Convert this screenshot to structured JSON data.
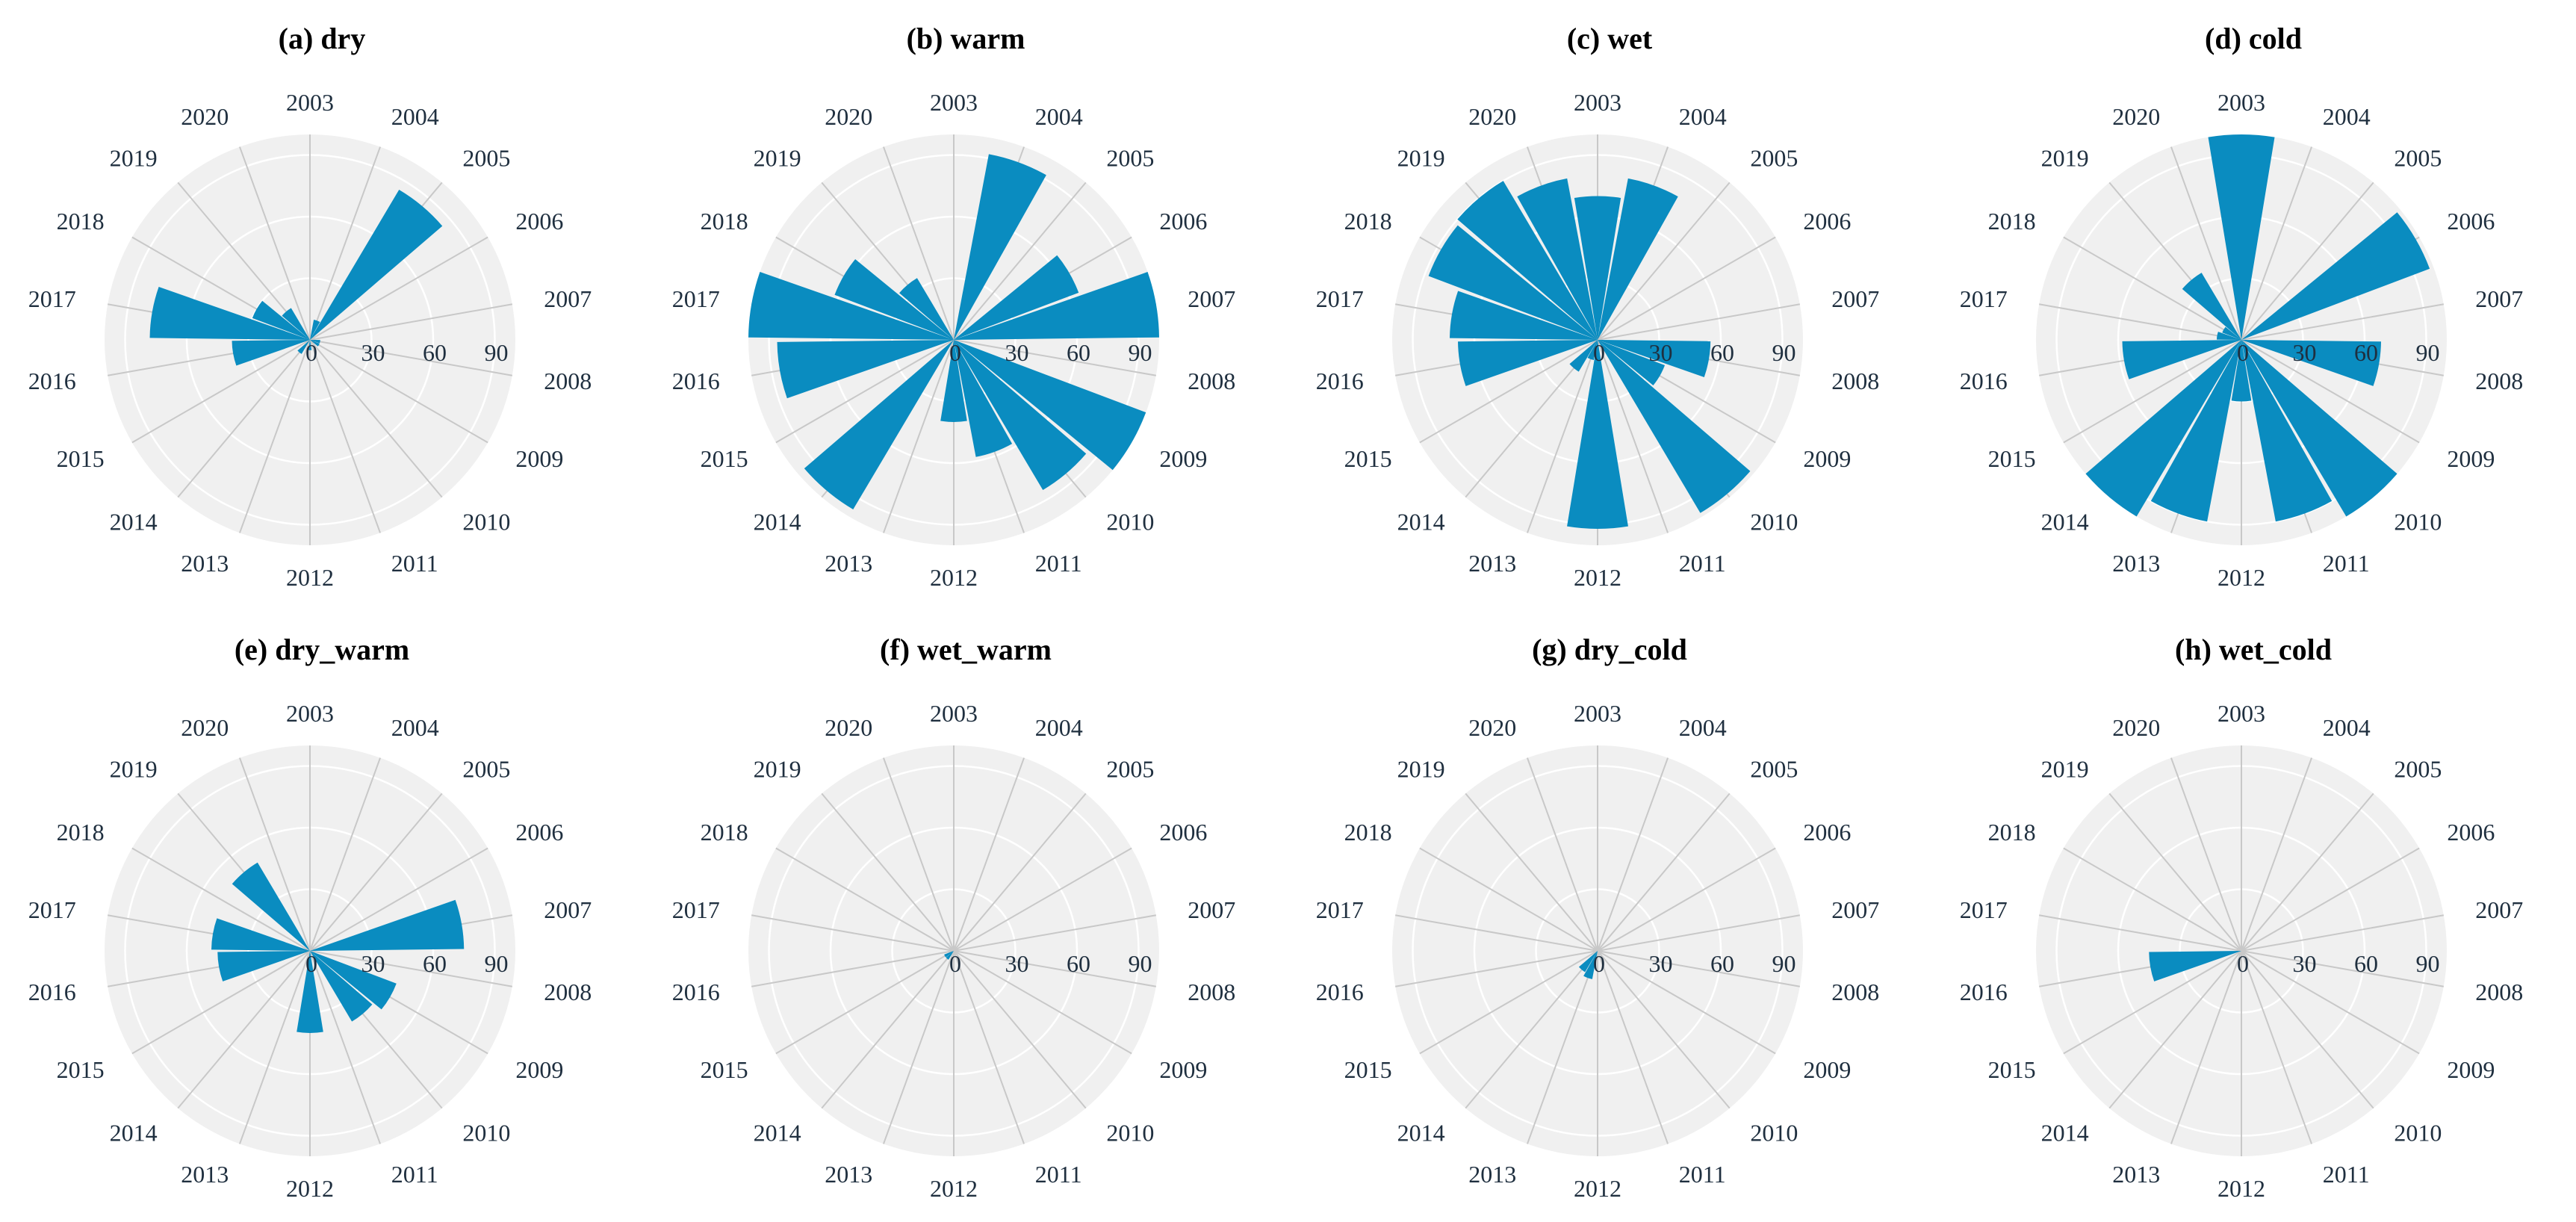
{
  "colors": {
    "bar": "#0a8cc0",
    "background_disc": "#f0f0f0",
    "grid": "#c8c8c8",
    "ring": "#ffffff",
    "text": "#1f2f3f"
  },
  "chart_data": [
    {
      "type": "bar",
      "subtype": "polar",
      "title": "(a) dry",
      "categories": [
        "2003",
        "2004",
        "2005",
        "2006",
        "2007",
        "2008",
        "2009",
        "2010",
        "2011",
        "2012",
        "2013",
        "2014",
        "2015",
        "2016",
        "2017",
        "2018",
        "2019",
        "2020"
      ],
      "values": [
        0,
        10,
        85,
        0,
        0,
        5,
        5,
        0,
        0,
        5,
        0,
        8,
        0,
        38,
        78,
        30,
        18,
        0
      ],
      "radial_ticks": [
        "0",
        "30",
        "60",
        "90"
      ],
      "rlim": [
        0,
        100
      ]
    },
    {
      "type": "bar",
      "subtype": "polar",
      "title": "(b) warm",
      "categories": [
        "2003",
        "2004",
        "2005",
        "2006",
        "2007",
        "2008",
        "2009",
        "2010",
        "2011",
        "2012",
        "2013",
        "2014",
        "2015",
        "2016",
        "2017",
        "2018",
        "2019",
        "2020"
      ],
      "values": [
        0,
        92,
        0,
        65,
        100,
        0,
        100,
        85,
        58,
        40,
        0,
        96,
        0,
        86,
        100,
        62,
        35,
        0
      ],
      "radial_ticks": [
        "0",
        "30",
        "60",
        "90"
      ],
      "rlim": [
        0,
        100
      ]
    },
    {
      "type": "bar",
      "subtype": "polar",
      "title": "(c) wet",
      "categories": [
        "2003",
        "2004",
        "2005",
        "2006",
        "2007",
        "2008",
        "2009",
        "2010",
        "2011",
        "2012",
        "2013",
        "2014",
        "2015",
        "2016",
        "2017",
        "2018",
        "2019",
        "2020"
      ],
      "values": [
        70,
        80,
        0,
        0,
        0,
        55,
        35,
        98,
        0,
        92,
        10,
        18,
        0,
        68,
        72,
        88,
        90,
        80
      ],
      "radial_ticks": [
        "0",
        "30",
        "60",
        "90"
      ],
      "rlim": [
        0,
        100
      ]
    },
    {
      "type": "bar",
      "subtype": "polar",
      "title": "(d) cold",
      "categories": [
        "2003",
        "2004",
        "2005",
        "2006",
        "2007",
        "2008",
        "2009",
        "2010",
        "2011",
        "2012",
        "2013",
        "2014",
        "2015",
        "2016",
        "2017",
        "2018",
        "2019",
        "2020"
      ],
      "values": [
        100,
        0,
        0,
        98,
        0,
        68,
        0,
        100,
        90,
        30,
        90,
        100,
        0,
        58,
        12,
        10,
        38,
        0
      ],
      "radial_ticks": [
        "0",
        "30",
        "60",
        "90"
      ],
      "rlim": [
        0,
        100
      ]
    },
    {
      "type": "bar",
      "subtype": "polar",
      "title": "(e) dry_warm",
      "categories": [
        "2003",
        "2004",
        "2005",
        "2006",
        "2007",
        "2008",
        "2009",
        "2010",
        "2011",
        "2012",
        "2013",
        "2014",
        "2015",
        "2016",
        "2017",
        "2018",
        "2019",
        "2020"
      ],
      "values": [
        0,
        0,
        0,
        0,
        75,
        0,
        45,
        40,
        0,
        40,
        0,
        0,
        0,
        45,
        48,
        0,
        50,
        0
      ],
      "radial_ticks": [
        "0",
        "30",
        "60",
        "90"
      ],
      "rlim": [
        0,
        100
      ]
    },
    {
      "type": "bar",
      "subtype": "polar",
      "title": "(f) wet_warm",
      "categories": [
        "2003",
        "2004",
        "2005",
        "2006",
        "2007",
        "2008",
        "2009",
        "2010",
        "2011",
        "2012",
        "2013",
        "2014",
        "2015",
        "2016",
        "2017",
        "2018",
        "2019",
        "2020"
      ],
      "values": [
        0,
        0,
        0,
        0,
        0,
        0,
        0,
        0,
        0,
        0,
        0,
        5,
        5,
        0,
        0,
        0,
        0,
        0
      ],
      "radial_ticks": [
        "0",
        "30",
        "60",
        "90"
      ],
      "rlim": [
        0,
        100
      ]
    },
    {
      "type": "bar",
      "subtype": "polar",
      "title": "(g) dry_cold",
      "categories": [
        "2003",
        "2004",
        "2005",
        "2006",
        "2007",
        "2008",
        "2009",
        "2010",
        "2011",
        "2012",
        "2013",
        "2014",
        "2015",
        "2016",
        "2017",
        "2018",
        "2019",
        "2020"
      ],
      "values": [
        0,
        0,
        0,
        0,
        0,
        0,
        0,
        0,
        0,
        0,
        14,
        12,
        0,
        0,
        0,
        0,
        0,
        0
      ],
      "radial_ticks": [
        "0",
        "30",
        "60",
        "90"
      ],
      "rlim": [
        0,
        100
      ]
    },
    {
      "type": "bar",
      "subtype": "polar",
      "title": "(h) wet_cold",
      "categories": [
        "2003",
        "2004",
        "2005",
        "2006",
        "2007",
        "2008",
        "2009",
        "2010",
        "2011",
        "2012",
        "2013",
        "2014",
        "2015",
        "2016",
        "2017",
        "2018",
        "2019",
        "2020"
      ],
      "values": [
        0,
        0,
        0,
        0,
        0,
        0,
        0,
        0,
        0,
        0,
        0,
        0,
        0,
        45,
        0,
        0,
        0,
        0
      ],
      "radial_ticks": [
        "0",
        "30",
        "60",
        "90"
      ],
      "rlim": [
        0,
        100
      ]
    }
  ]
}
